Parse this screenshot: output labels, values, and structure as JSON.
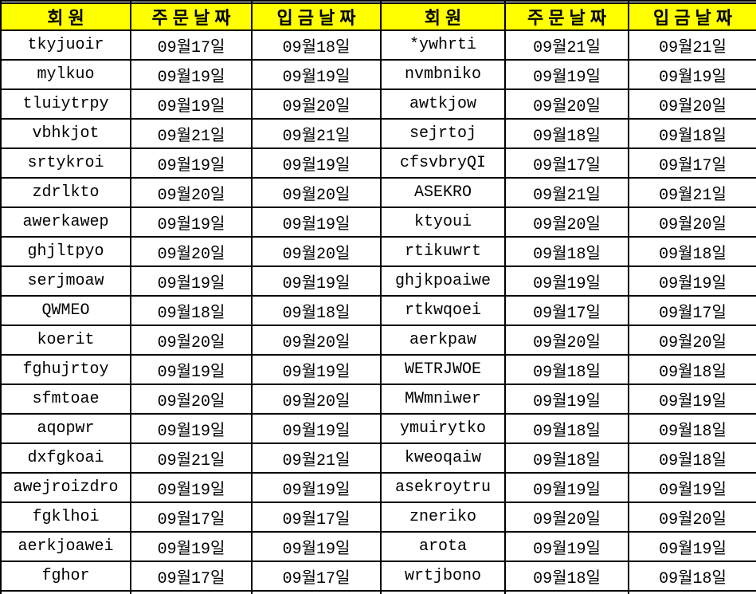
{
  "colors": {
    "header_bg": "#FFFF00",
    "grid_border": "#000000",
    "text": "#000000",
    "cell_bg": "#FFFFFF"
  },
  "table": {
    "header": [
      "회원",
      "주문날짜",
      "입금날짜",
      "회원",
      "주문날짜",
      "입금날짜"
    ],
    "column_roles": [
      "member",
      "order-date",
      "deposit-date",
      "member",
      "order-date",
      "deposit-date"
    ],
    "rows": [
      [
        "tkyjuoir",
        "09월17일",
        "09월18일",
        "*ywhrti",
        "09월21일",
        "09월21일"
      ],
      [
        "mylkuo",
        "09월19일",
        "09월19일",
        "nvmbniko",
        "09월19일",
        "09월19일"
      ],
      [
        "tluiytrpy",
        "09월19일",
        "09월20일",
        "awtkjow",
        "09월20일",
        "09월20일"
      ],
      [
        "vbhkjot",
        "09월21일",
        "09월21일",
        "sejrtoj",
        "09월18일",
        "09월18일"
      ],
      [
        "srtykroi",
        "09월19일",
        "09월19일",
        "cfsvbryQI",
        "09월17일",
        "09월17일"
      ],
      [
        "zdrlkto",
        "09월20일",
        "09월20일",
        "ASEKRO",
        "09월21일",
        "09월21일"
      ],
      [
        "awerkawep",
        "09월19일",
        "09월19일",
        "ktyoui",
        "09월20일",
        "09월20일"
      ],
      [
        "ghjltpyo",
        "09월20일",
        "09월20일",
        "rtikuwrt",
        "09월18일",
        "09월18일"
      ],
      [
        "serjmoaw",
        "09월19일",
        "09월19일",
        "ghjkpoaiwe",
        "09월19일",
        "09월19일"
      ],
      [
        "QWMEO",
        "09월18일",
        "09월18일",
        "rtkwqoei",
        "09월17일",
        "09월17일"
      ],
      [
        "koerit",
        "09월20일",
        "09월20일",
        "aerkpaw",
        "09월20일",
        "09월20일"
      ],
      [
        "fghujrtoy",
        "09월19일",
        "09월19일",
        "WETRJWOE",
        "09월18일",
        "09월18일"
      ],
      [
        "sfmtoae",
        "09월20일",
        "09월20일",
        "MWmniwer",
        "09월19일",
        "09월19일"
      ],
      [
        "aqopwr",
        "09월19일",
        "09월19일",
        "ymuirytko",
        "09월18일",
        "09월18일"
      ],
      [
        "dxfgkoai",
        "09월21일",
        "09월21일",
        "kweoqaiw",
        "09월18일",
        "09월18일"
      ],
      [
        "awejroizdro",
        "09월19일",
        "09월19일",
        "asekroytru",
        "09월19일",
        "09월19일"
      ],
      [
        "fgklhoi",
        "09월17일",
        "09월17일",
        "zneriko",
        "09월20일",
        "09월20일"
      ],
      [
        "aerkjoawei",
        "09월19일",
        "09월19일",
        "arota",
        "09월19일",
        "09월19일"
      ],
      [
        "fghor",
        "09월17일",
        "09월17일",
        "wrtjbono",
        "09월18일",
        "09월18일"
      ]
    ]
  }
}
